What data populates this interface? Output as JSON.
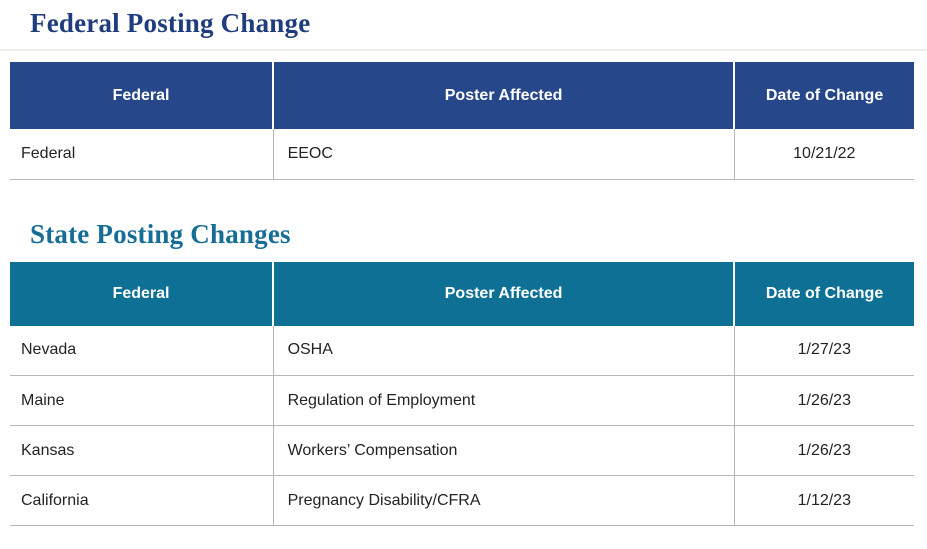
{
  "colors": {
    "federal_header_bg": "#27478B",
    "state_header_bg": "#0E7095",
    "federal_title": "#1F3C7D",
    "state_title": "#176E94",
    "header_text": "#FFFFFF",
    "body_text": "#232323",
    "row_rule": "#B7B7B7"
  },
  "federal_section": {
    "title": "Federal Posting Change",
    "columns": [
      "Federal",
      "Poster Affected",
      "Date of Change"
    ],
    "rows": [
      {
        "jurisdiction": "Federal",
        "poster": "EEOC",
        "date": "10/21/22"
      }
    ]
  },
  "state_section": {
    "title": "State Posting Changes",
    "columns": [
      "Federal",
      "Poster Affected",
      "Date of Change"
    ],
    "rows": [
      {
        "jurisdiction": "Nevada",
        "poster": "OSHA",
        "date": "1/27/23"
      },
      {
        "jurisdiction": "Maine",
        "poster": "Regulation of Employment",
        "date": "1/26/23"
      },
      {
        "jurisdiction": "Kansas",
        "poster": "Workers’ Compensation",
        "date": "1/26/23"
      },
      {
        "jurisdiction": "California",
        "poster": "Pregnancy Disability/CFRA",
        "date": "1/12/23"
      }
    ]
  }
}
